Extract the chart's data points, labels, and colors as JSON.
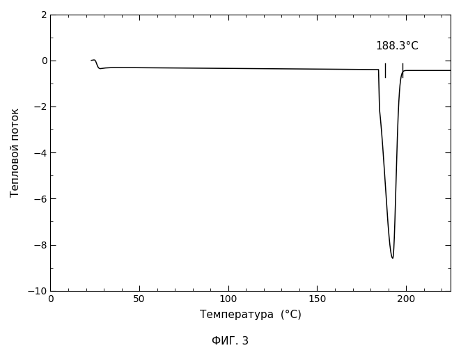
{
  "xlabel": "Температура  (°C)",
  "ylabel": "Тепловой поток",
  "fig_caption": "ФИГ. 3",
  "annotation_text": "188.3°C",
  "xlim": [
    0,
    225
  ],
  "ylim": [
    -10,
    2
  ],
  "xticks": [
    0,
    50,
    100,
    150,
    200
  ],
  "yticks": [
    -10,
    -8,
    -6,
    -4,
    -2,
    0,
    2
  ],
  "line_color": "#000000",
  "background_color": "#ffffff",
  "figsize": [
    6.62,
    5.0
  ],
  "dpi": 100
}
